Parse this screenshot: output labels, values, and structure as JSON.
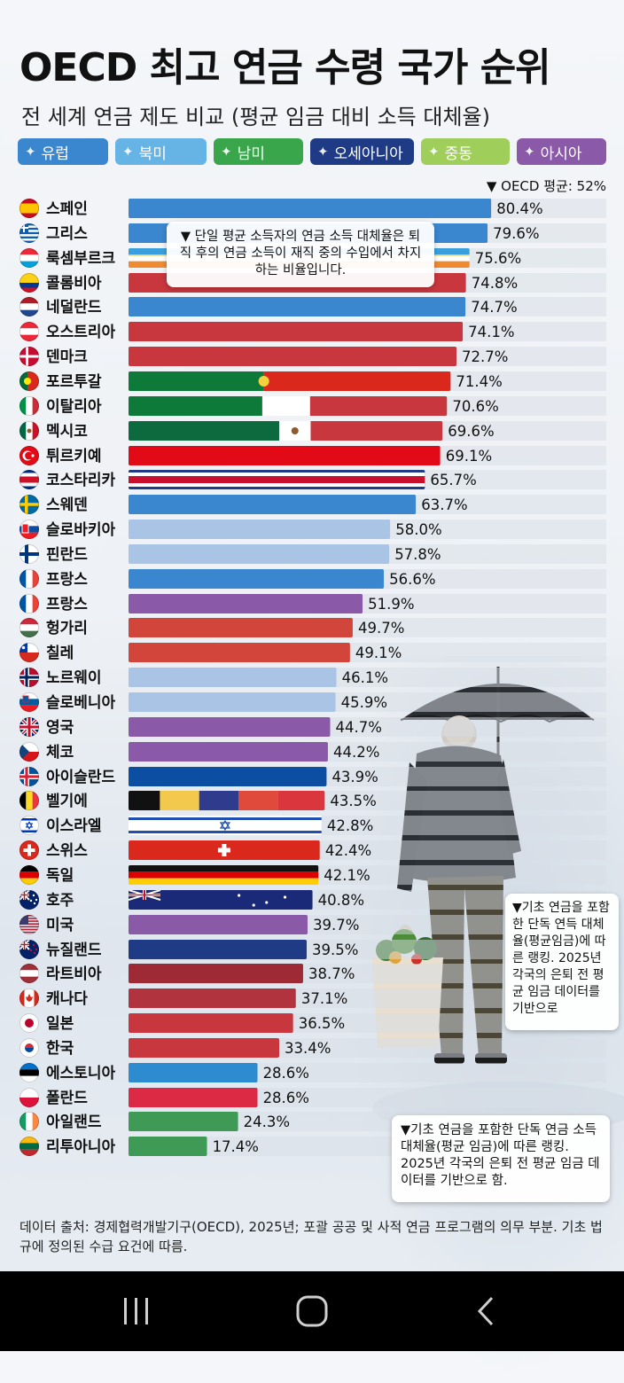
{
  "title": "OECD 최고 연금 수령 국가 순위",
  "subtitle": "전 세계 연금 제도 비교 (평균 임금 대비 소득 대체율)",
  "legend": [
    {
      "label": "유럽",
      "color": "#3a86cf",
      "icon": "europe-map-icon"
    },
    {
      "label": "북미",
      "color": "#66b3e6",
      "icon": "north-america-map-icon"
    },
    {
      "label": "남미",
      "color": "#3aa64c",
      "icon": "south-america-map-icon"
    },
    {
      "label": "오세아니아",
      "color": "#1f3b86",
      "icon": "oceania-map-icon"
    },
    {
      "label": "중동",
      "color": "#9fcf5a",
      "icon": "middle-east-map-icon"
    },
    {
      "label": "아시아",
      "color": "#8a5aa8",
      "icon": "asia-map-icon"
    }
  ],
  "avg_note": "▼ OECD 평균: 52%",
  "chart_data": {
    "type": "bar",
    "orientation": "horizontal",
    "xlim": [
      0,
      100
    ],
    "categories": [
      "스페인",
      "그리스",
      "룩셈부르크",
      "콜롬비아",
      "네덜란드",
      "오스트리아",
      "덴마크",
      "포르투갈",
      "이탈리아",
      "멕시코",
      "튀르키예",
      "코스타리카",
      "스웨덴",
      "슬로바키아",
      "핀란드",
      "프랑스",
      "프랑스",
      "헝가리",
      "칠레",
      "노르웨이",
      "슬로베니아",
      "영국",
      "체코",
      "아이슬란드",
      "벨기에",
      "이스라엘",
      "스위스",
      "독일",
      "호주",
      "미국",
      "뉴질랜드",
      "라트비아",
      "캐나다",
      "일본",
      "한국",
      "에스토니아",
      "폴란드",
      "아일랜드",
      "리투아니아"
    ],
    "values": [
      80.4,
      79.6,
      75.6,
      74.8,
      74.7,
      74.1,
      72.7,
      71.4,
      70.6,
      69.6,
      69.1,
      65.7,
      63.7,
      58.0,
      57.8,
      56.6,
      51.9,
      49.7,
      49.1,
      46.1,
      45.9,
      44.7,
      44.2,
      43.9,
      43.5,
      42.8,
      42.4,
      42.1,
      40.8,
      39.7,
      39.5,
      38.7,
      37.1,
      36.5,
      33.4,
      28.6,
      28.6,
      24.3,
      17.4
    ],
    "labels": [
      "80.4%",
      "79.6%",
      "75.6%",
      "74.8%",
      "74.7%",
      "74.1%",
      "72.7%",
      "71.4%",
      "70.6%",
      "69.6%",
      "69.1%",
      "65.7%",
      "63.7%",
      "58.0%",
      "57.8%",
      "56.6%",
      "51.9%",
      "49.7%",
      "49.1%",
      "46.1%",
      "45.9%",
      "44.7%",
      "44.2%",
      "43.9%",
      "43.5%",
      "42.8%",
      "42.4%",
      "42.1%",
      "40.8%",
      "39.7%",
      "39.5%",
      "38.7%",
      "37.1%",
      "36.5%",
      "33.4%",
      "28.6%",
      "28.6%",
      "24.3%",
      "17.4%"
    ],
    "flags": [
      "es",
      "gr",
      "lu",
      "co",
      "nl",
      "at",
      "dk",
      "pt",
      "it",
      "mx",
      "tr",
      "cr",
      "se",
      "sk",
      "fi",
      "fr",
      "fr",
      "hu",
      "cl",
      "no",
      "si",
      "gb",
      "cz",
      "is",
      "be",
      "il",
      "ch",
      "de",
      "au",
      "us",
      "nz",
      "lv",
      "ca",
      "jp",
      "kr",
      "ee",
      "pl",
      "ie",
      "lt"
    ],
    "bar_styles": [
      "solid:#3a86cf",
      "solid:#3a86cf",
      "stripes-lu",
      "solid:#c8373e",
      "solid:#3a86cf",
      "solid:#c8373e",
      "solid:#c8373e",
      "flag-pt",
      "flag-it",
      "flag-mx",
      "solid:#e30a17",
      "flag-cr",
      "solid:#3a86cf",
      "solid:#a9c4e4",
      "solid:#a9c4e4",
      "solid:#3a86cf",
      "solid:#8a5aa8",
      "solid:#d2453a",
      "solid:#d2453a",
      "solid:#a9c4e4",
      "solid:#a9c4e4",
      "solid:#8a5aa8",
      "solid:#8a5aa8",
      "solid:#0b4ea2",
      "flag-be",
      "flag-il",
      "flag-ch",
      "flag-de",
      "flag-au",
      "solid:#8a5aa8",
      "solid:#1f3b86",
      "solid:#9e2a35",
      "solid:#b0333d",
      "solid:#c8373e",
      "solid:#c8373e",
      "solid:#2d8bd0",
      "solid:#dc2a45",
      "solid:#3e9a55",
      "solid:#3e9a55"
    ]
  },
  "callouts": {
    "c1": "▼ 단일 평균 소득자의 연금 소득 대체율은 퇴직 후의 연금 소득이 재직 중의 수입에서 차지하는 비율입니다.",
    "c2": "▼기초 연금을 포함한 단독 연득 대체율(평균임금)에 따른 랭킹. 2025년 각국의 은퇴 전 평균 임금 데이터를 기반으로",
    "c3": "▼기초 연금을 포함한 단독 연금 소득 대체율(평균 임금)에 따른 랭킹. 2025년 각국의 은퇴 전 평균 임금 데이터를 기반으로 함."
  },
  "source": "데이터 출처: 경제협력개발기구(OECD), 2025년; 포괄 공공 및 사적 연금 프로그램의 의무 부분. 기초 법규에 정의된 수급 요건에 따름."
}
